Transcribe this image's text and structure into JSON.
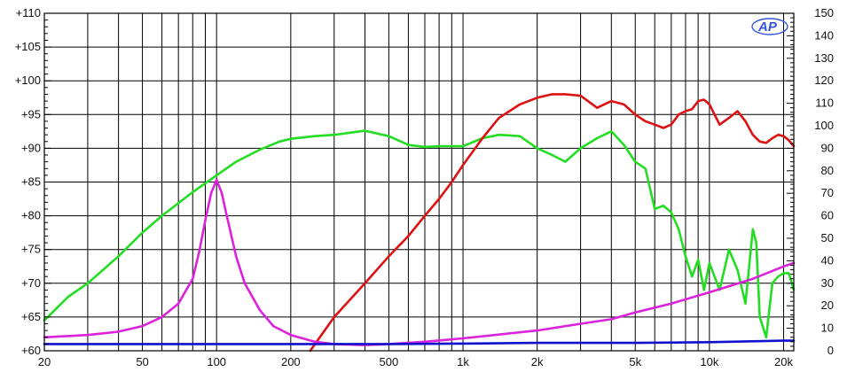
{
  "chart_data": {
    "type": "line",
    "title": "",
    "xlabel": "",
    "ylabel": "",
    "x_scale": "log",
    "xlim": [
      20,
      22000
    ],
    "ylim": [
      60,
      110
    ],
    "y2lim": [
      0,
      150
    ],
    "grid": true,
    "legend": "none",
    "logo_text": "AP",
    "x_tick_labels": [
      "20",
      "50",
      "100",
      "200",
      "500",
      "1k",
      "2k",
      "5k",
      "10k",
      "20k"
    ],
    "x_tick_values": [
      20,
      50,
      100,
      200,
      500,
      1000,
      2000,
      5000,
      10000,
      20000
    ],
    "y_tick_labels": [
      "+60",
      "+65",
      "+70",
      "+75",
      "+80",
      "+85",
      "+90",
      "+95",
      "+100",
      "+105",
      "+110"
    ],
    "y_tick_values": [
      60,
      65,
      70,
      75,
      80,
      85,
      90,
      95,
      100,
      105,
      110
    ],
    "y2_tick_labels": [
      "0",
      "10",
      "20",
      "30",
      "40",
      "50",
      "60",
      "70",
      "80",
      "90",
      "100",
      "110",
      "120",
      "130",
      "140",
      "150"
    ],
    "y2_tick_values": [
      0,
      10,
      20,
      30,
      40,
      50,
      60,
      70,
      80,
      90,
      100,
      110,
      120,
      130,
      140,
      150
    ],
    "series": [
      {
        "axis": "left",
        "color": "#22dd22",
        "x": [
          20,
          25,
          30,
          40,
          50,
          60,
          80,
          100,
          120,
          150,
          180,
          200,
          250,
          300,
          400,
          500,
          600,
          700,
          800,
          1000,
          1200,
          1400,
          1700,
          2000,
          2300,
          2600,
          3000,
          3500,
          4000,
          4500,
          5000,
          5500,
          6000,
          6500,
          7000,
          7500,
          8000,
          8500,
          9000,
          9500,
          10000,
          11000,
          12000,
          13000,
          14000,
          15000,
          15500,
          16000,
          17000,
          18000,
          19000,
          20000,
          21000,
          22000
        ],
        "y": [
          64.5,
          68,
          70,
          74,
          77.5,
          80,
          83.5,
          86,
          88,
          89.8,
          91,
          91.4,
          91.8,
          92,
          92.6,
          91.8,
          90.5,
          90.2,
          90.3,
          90.3,
          91.5,
          92,
          91.8,
          90,
          89,
          88,
          90,
          91.5,
          92.5,
          90.5,
          88,
          87,
          81,
          81.5,
          80.5,
          78,
          74,
          71,
          73.5,
          69,
          73,
          69,
          75,
          72,
          67,
          78,
          76,
          65,
          62,
          70,
          71,
          71.5,
          71.5,
          69
        ]
      },
      {
        "axis": "left",
        "color": "#dd1111",
        "x": [
          240,
          300,
          400,
          500,
          600,
          700,
          800,
          900,
          1000,
          1200,
          1400,
          1700,
          2000,
          2300,
          2600,
          3000,
          3500,
          4000,
          4500,
          5000,
          5500,
          6000,
          6500,
          7000,
          7500,
          8000,
          8500,
          9000,
          9500,
          10000,
          11000,
          12000,
          13000,
          14000,
          15000,
          16000,
          17000,
          18000,
          19000,
          20000,
          21000,
          22000
        ],
        "y": [
          60,
          65,
          70,
          74,
          77,
          80,
          82.5,
          85,
          87.5,
          91.5,
          94.5,
          96.5,
          97.5,
          98,
          98,
          97.8,
          96,
          97,
          96.5,
          95,
          94,
          93.5,
          93,
          93.5,
          95,
          95.5,
          95.8,
          97,
          97.2,
          96.5,
          93.5,
          94.5,
          95.5,
          94,
          92,
          91,
          90.8,
          91.5,
          92,
          91.8,
          91.2,
          90.3
        ]
      },
      {
        "axis": "right",
        "color": "#dd22dd",
        "x": [
          20,
          30,
          40,
          50,
          60,
          70,
          80,
          85,
          90,
          95,
          100,
          105,
          110,
          120,
          130,
          150,
          170,
          200,
          250,
          300,
          400,
          500,
          700,
          1000,
          2000,
          3000,
          4000,
          5000,
          7000,
          10000,
          15000,
          20000,
          22000
        ],
        "y": [
          6,
          7,
          8.5,
          11,
          15,
          21,
          32,
          44,
          58,
          70,
          76,
          70,
          60,
          42,
          30,
          18,
          11,
          7,
          4,
          3,
          2.5,
          3,
          4,
          5.5,
          9,
          12,
          14,
          17,
          21,
          26,
          32,
          37.5,
          39
        ]
      },
      {
        "axis": "right",
        "color": "#1111cc",
        "x": [
          20,
          100,
          500,
          1000,
          2000,
          5000,
          10000,
          20000,
          22000
        ],
        "y": [
          3,
          3,
          3,
          3.2,
          3.5,
          3.5,
          3.8,
          4.5,
          4.5
        ]
      }
    ]
  }
}
